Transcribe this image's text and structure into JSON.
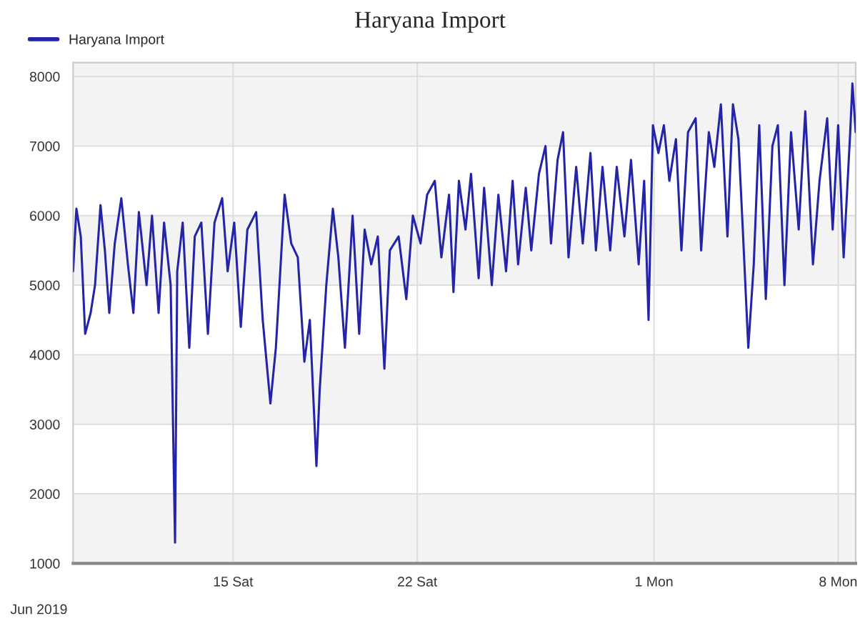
{
  "chart_data": {
    "type": "line",
    "title": "Haryana Import",
    "x": [
      "2019-06-08T22:00",
      "2019-06-09T01:00",
      "2019-06-09T05:00",
      "2019-06-09T09:00",
      "2019-06-09T14:00",
      "2019-06-09T18:00",
      "2019-06-09T23:00",
      "2019-06-10T03:00",
      "2019-06-10T07:00",
      "2019-06-10T12:00",
      "2019-06-10T18:00",
      "2019-06-11T00:00",
      "2019-06-11T05:00",
      "2019-06-11T10:00",
      "2019-06-11T17:00",
      "2019-06-11T22:00",
      "2019-06-12T04:00",
      "2019-06-12T09:00",
      "2019-06-12T15:00",
      "2019-06-12T19:00",
      "2019-06-12T21:00",
      "2019-06-13T02:00",
      "2019-06-13T08:00",
      "2019-06-13T13:00",
      "2019-06-13T19:00",
      "2019-06-14T01:00",
      "2019-06-14T07:00",
      "2019-06-14T14:00",
      "2019-06-14T19:00",
      "2019-06-15T01:00",
      "2019-06-15T07:00",
      "2019-06-15T13:00",
      "2019-06-15T21:00",
      "2019-06-16T03:00",
      "2019-06-16T10:00",
      "2019-06-16T15:00",
      "2019-06-16T19:00",
      "2019-06-16T23:00",
      "2019-06-17T05:00",
      "2019-06-17T11:00",
      "2019-06-17T17:00",
      "2019-06-17T22:00",
      "2019-06-18T04:00",
      "2019-06-18T07:00",
      "2019-06-18T13:00",
      "2019-06-18T19:00",
      "2019-06-19T00:00",
      "2019-06-19T06:00",
      "2019-06-19T13:00",
      "2019-06-19T19:00",
      "2019-06-20T00:00",
      "2019-06-20T06:00",
      "2019-06-20T12:00",
      "2019-06-20T18:00",
      "2019-06-20T23:00",
      "2019-06-21T07:00",
      "2019-06-21T14:00",
      "2019-06-21T20:00",
      "2019-06-22T03:00",
      "2019-06-22T09:00",
      "2019-06-22T16:00",
      "2019-06-22T22:00",
      "2019-06-23T05:00",
      "2019-06-23T09:00",
      "2019-06-23T14:00",
      "2019-06-23T20:00",
      "2019-06-24T01:00",
      "2019-06-24T08:00",
      "2019-06-24T13:00",
      "2019-06-24T20:00",
      "2019-06-25T02:00",
      "2019-06-25T09:00",
      "2019-06-25T15:00",
      "2019-06-25T20:00",
      "2019-06-26T03:00",
      "2019-06-26T08:00",
      "2019-06-26T15:00",
      "2019-06-26T21:00",
      "2019-06-27T02:00",
      "2019-06-27T08:00",
      "2019-06-27T13:00",
      "2019-06-27T18:00",
      "2019-06-28T01:00",
      "2019-06-28T07:00",
      "2019-06-28T14:00",
      "2019-06-28T19:00",
      "2019-06-29T01:00",
      "2019-06-29T08:00",
      "2019-06-29T14:00",
      "2019-06-29T21:00",
      "2019-06-30T03:00",
      "2019-06-30T10:00",
      "2019-06-30T15:00",
      "2019-06-30T19:00",
      "2019-06-30T23:00",
      "2019-07-01T04:00",
      "2019-07-01T09:00",
      "2019-07-01T14:00",
      "2019-07-01T20:00",
      "2019-07-02T01:00",
      "2019-07-02T07:00",
      "2019-07-02T14:00",
      "2019-07-02T19:00",
      "2019-07-03T02:00",
      "2019-07-03T07:00",
      "2019-07-03T13:00",
      "2019-07-03T19:00",
      "2019-07-04T00:00",
      "2019-07-04T05:00",
      "2019-07-04T09:00",
      "2019-07-04T14:00",
      "2019-07-04T19:00",
      "2019-07-05T00:00",
      "2019-07-05T06:00",
      "2019-07-05T12:00",
      "2019-07-05T17:00",
      "2019-07-05T23:00",
      "2019-07-06T05:00",
      "2019-07-06T12:00",
      "2019-07-06T18:00",
      "2019-07-07T01:00",
      "2019-07-07T07:00",
      "2019-07-07T14:00",
      "2019-07-07T19:00",
      "2019-07-08T00:00",
      "2019-07-08T05:00",
      "2019-07-08T11:00",
      "2019-07-08T13:00",
      "2019-07-08T16:00"
    ],
    "series": [
      {
        "name": "Haryana Import",
        "color": "#2424a8",
        "values": [
          5200,
          6100,
          5700,
          4300,
          4600,
          5000,
          6150,
          5500,
          4600,
          5600,
          6250,
          5300,
          4600,
          6050,
          5000,
          6000,
          4600,
          5900,
          5000,
          1300,
          5200,
          5900,
          4100,
          5700,
          5900,
          4300,
          5900,
          6250,
          5200,
          5900,
          4400,
          5800,
          6050,
          4500,
          3300,
          4100,
          5200,
          6300,
          5600,
          5400,
          3900,
          4500,
          2400,
          3500,
          5000,
          6100,
          5400,
          4100,
          6000,
          4300,
          5800,
          5300,
          5700,
          3800,
          5500,
          5700,
          4800,
          6000,
          5600,
          6300,
          6500,
          5400,
          6300,
          4900,
          6500,
          5800,
          6600,
          5100,
          6400,
          5000,
          6300,
          5200,
          6500,
          5300,
          6400,
          5500,
          6600,
          7000,
          5600,
          6800,
          7200,
          5400,
          6700,
          5600,
          6900,
          5500,
          6700,
          5500,
          6700,
          5700,
          6800,
          5300,
          6500,
          4500,
          7300,
          6900,
          7300,
          6500,
          7100,
          5500,
          7200,
          7400,
          5500,
          7200,
          6700,
          7600,
          5700,
          7600,
          7100,
          5800,
          4100,
          5300,
          7300,
          4800,
          7000,
          7300,
          5000,
          7200,
          5800,
          7500,
          5300,
          6500,
          7400,
          5800,
          7300,
          5400,
          7200,
          7900,
          7200
        ]
      }
    ],
    "xlim": [
      "2019-06-08T22:00",
      "2019-07-08T16:00"
    ],
    "xticks": [
      {
        "value": "2019-06-15",
        "label": "15 Sat"
      },
      {
        "value": "2019-06-22",
        "label": "22 Sat"
      },
      {
        "value": "2019-07-01",
        "label": "1 Mon"
      },
      {
        "value": "2019-07-08",
        "label": "8 Mon"
      }
    ],
    "ylim": [
      1000,
      8200
    ],
    "yticks": [
      1000,
      2000,
      3000,
      4000,
      5000,
      6000,
      7000,
      8000
    ],
    "bands": [
      {
        "axis": "y",
        "from": 1000,
        "to": 2000,
        "color": "#f3f3f3"
      },
      {
        "axis": "y",
        "from": 3000,
        "to": 4000,
        "color": "#f3f3f3"
      },
      {
        "axis": "y",
        "from": 5000,
        "to": 6000,
        "color": "#f3f3f3"
      },
      {
        "axis": "y",
        "from": 7000,
        "to": 8200,
        "color": "#f3f3f3"
      }
    ],
    "grid": true,
    "legend": "top left",
    "line_style": "solid",
    "marker": "none",
    "annotations": [
      "Jun 2019"
    ]
  }
}
